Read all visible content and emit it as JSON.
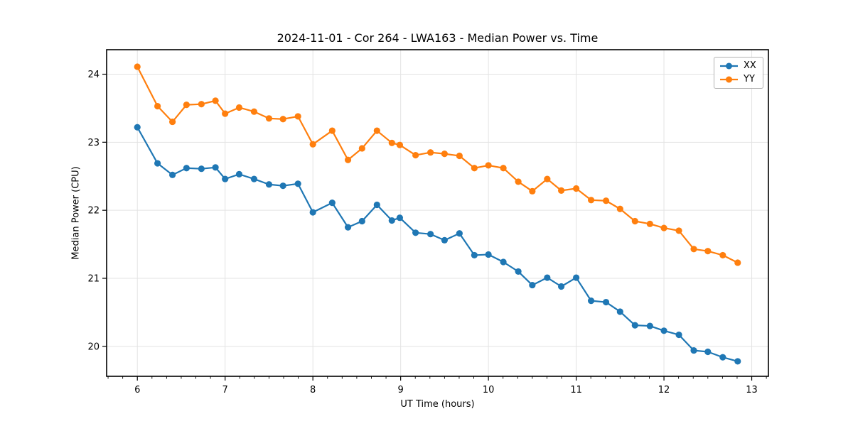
{
  "figure": {
    "title": "2024-11-01 - Cor 264 - LWA163 - Median Power vs. Time",
    "xlabel": "UT Time (hours)",
    "ylabel": "Median Power (CPU)"
  },
  "chart_data": {
    "type": "line",
    "title": "2024-11-01 - Cor 264 - LWA163 - Median Power vs. Time",
    "xlabel": "UT Time (hours)",
    "ylabel": "Median Power (CPU)",
    "xlim": [
      5.65,
      13.19
    ],
    "ylim": [
      19.56,
      24.36
    ],
    "x_ticks": [
      6,
      7,
      8,
      9,
      10,
      11,
      12,
      13
    ],
    "y_ticks": [
      20,
      21,
      22,
      23,
      24
    ],
    "x_minor_tick_step": 0.16667,
    "grid": true,
    "grid_color": "#e3e3e3",
    "legend_position": "upper right",
    "marker": "circle",
    "x": [
      6.0,
      6.23,
      6.4,
      6.56,
      6.73,
      6.89,
      7.0,
      7.16,
      7.33,
      7.5,
      7.66,
      7.83,
      8.0,
      8.22,
      8.4,
      8.56,
      8.73,
      8.9,
      8.99,
      9.17,
      9.34,
      9.5,
      9.67,
      9.84,
      10.0,
      10.17,
      10.34,
      10.5,
      10.67,
      10.83,
      11.0,
      11.17,
      11.34,
      11.5,
      11.67,
      11.84,
      12.0,
      12.17,
      12.34,
      12.5,
      12.67,
      12.84
    ],
    "series": [
      {
        "name": "XX",
        "color": "#1f77b4",
        "values": [
          23.22,
          22.69,
          22.52,
          22.62,
          22.61,
          22.63,
          22.46,
          22.53,
          22.46,
          22.38,
          22.36,
          22.39,
          21.97,
          22.11,
          21.75,
          21.84,
          22.08,
          21.85,
          21.89,
          21.67,
          21.65,
          21.56,
          21.66,
          21.34,
          21.35,
          21.24,
          21.1,
          20.9,
          21.01,
          20.88,
          21.01,
          20.67,
          20.65,
          20.51,
          20.31,
          20.3,
          20.23,
          20.17,
          19.94,
          19.92,
          19.84,
          19.78
        ]
      },
      {
        "name": "YY",
        "color": "#ff7f0e",
        "values": [
          24.11,
          23.53,
          23.3,
          23.55,
          23.56,
          23.61,
          23.42,
          23.51,
          23.45,
          23.35,
          23.34,
          23.38,
          22.97,
          23.17,
          22.74,
          22.91,
          23.17,
          22.99,
          22.96,
          22.81,
          22.85,
          22.83,
          22.8,
          22.62,
          22.66,
          22.62,
          22.42,
          22.28,
          22.46,
          22.29,
          22.32,
          22.15,
          22.14,
          22.02,
          21.84,
          21.8,
          21.74,
          21.7,
          21.43,
          21.4,
          21.34,
          21.23
        ]
      }
    ]
  }
}
